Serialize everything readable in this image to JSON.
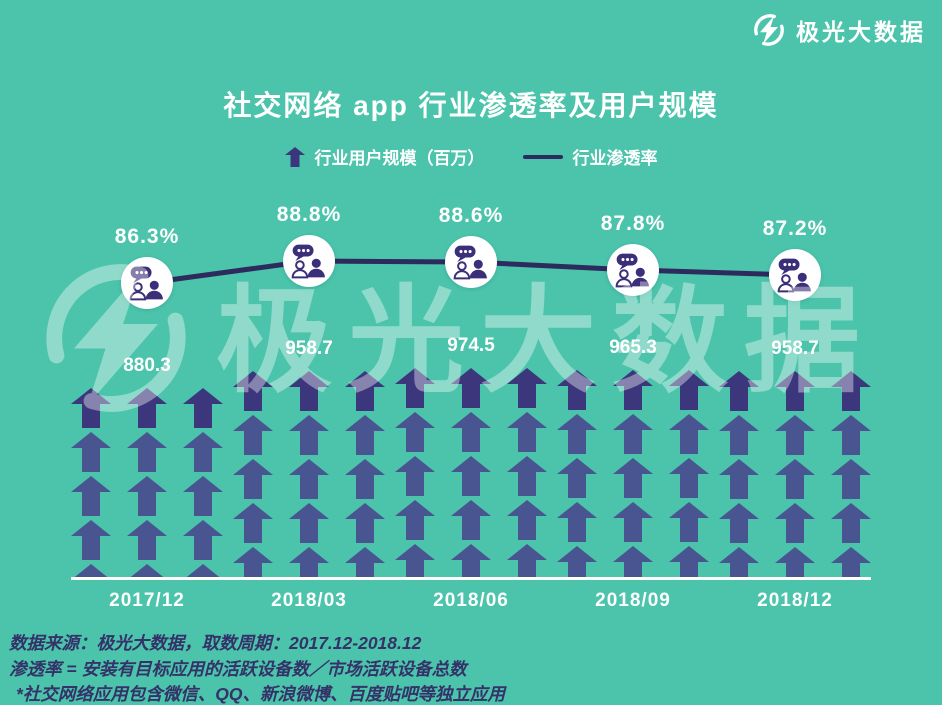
{
  "logo": {
    "text": "极光大数据"
  },
  "title": "社交网络 app 行业渗透率及用户规模",
  "legend": {
    "bar_label": "行业用户规模（百万）",
    "line_label": "行业渗透率"
  },
  "watermark": {
    "text": "极光大数据"
  },
  "chart_data": {
    "type": "bar",
    "variant": "pictograph arrow columns with overlay line",
    "title": "社交网络 app 行业渗透率及用户规模",
    "categories": [
      "2017/12",
      "2018/03",
      "2018/06",
      "2018/09",
      "2018/12"
    ],
    "series": [
      {
        "name": "行业用户规模（百万）",
        "type": "bar",
        "values": [
          880.3,
          958.7,
          974.5,
          965.3,
          958.7
        ]
      },
      {
        "name": "行业渗透率",
        "type": "line",
        "unit": "%",
        "values": [
          86.3,
          88.8,
          88.6,
          87.8,
          87.2
        ]
      }
    ],
    "value_labels": [
      "880.3",
      "958.7",
      "974.5",
      "965.3",
      "958.7"
    ],
    "percent_labels": [
      "86.3%",
      "88.8%",
      "88.6%",
      "87.8%",
      "87.2%"
    ],
    "legend_position": "top",
    "grid": false,
    "xlabel": "",
    "ylabel": ""
  },
  "footer": {
    "lines": [
      "数据来源：极光大数据，取数周期：2017.12-2018.12",
      "渗透率 = 安装有目标应用的活跃设备数／市场活跃设备总数",
      "*社交网络应用包含微信、QQ、新浪微博、百度贴吧等独立应用"
    ]
  },
  "colors": {
    "background": "#4bc4ab",
    "arrow": "#473a8a",
    "arrow_dark": "#3b2f7a",
    "line": "#2d2a5e",
    "circle": "#ffffff",
    "footer_text": "#343268",
    "white": "#ffffff"
  }
}
